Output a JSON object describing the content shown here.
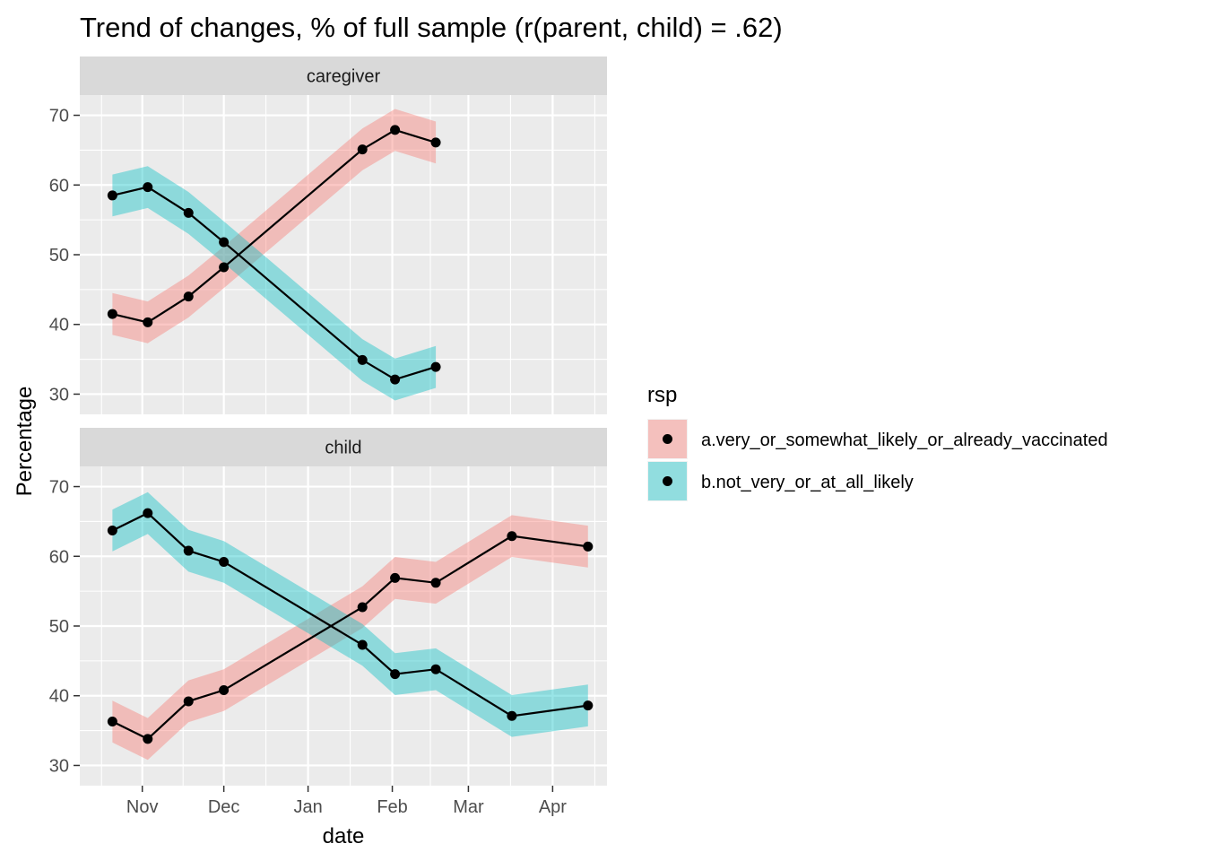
{
  "chart_data": {
    "type": "line",
    "title": "Trend of changes, % of full sample (r(parent, child) = .62)",
    "xlabel": "date",
    "ylabel": "Percentage",
    "x_ticks": [
      "Nov",
      "Dec",
      "Jan",
      "Feb",
      "Mar",
      "Apr"
    ],
    "x_tick_dates": [
      "2020-11-01",
      "2020-12-01",
      "2021-01-01",
      "2021-02-01",
      "2021-03-01",
      "2021-04-01"
    ],
    "xlim": [
      "2020-10-09",
      "2021-04-21"
    ],
    "y_ticks": [
      30,
      40,
      50,
      60,
      70
    ],
    "ylim": [
      27.1,
      72.9
    ],
    "grid": true,
    "legend": {
      "title": "rsp",
      "position": "right",
      "entries": [
        "a.very_or_somewhat_likely_or_already_vaccinated",
        "b.not_very_or_at_all_likely"
      ]
    },
    "colors": {
      "a.very_or_somewhat_likely_or_already_vaccinated": "#F8766D",
      "b.not_very_or_at_all_likely": "#00BFC4",
      "point": "#000000",
      "panel_bg": "#EBEBEB",
      "strip_bg": "#D9D9D9"
    },
    "panels": [
      {
        "label": "caregiver",
        "series": [
          {
            "name": "a.very_or_somewhat_likely_or_already_vaccinated",
            "x": [
              "2020-10-21",
              "2020-11-03",
              "2020-11-18",
              "2020-12-01",
              "2021-01-21",
              "2021-02-02",
              "2021-02-17"
            ],
            "values": [
              41.5,
              40.3,
              44.0,
              48.2,
              65.1,
              67.9,
              66.1
            ],
            "lower": [
              38.5,
              37.3,
              41.0,
              45.2,
              62.1,
              64.9,
              63.1
            ],
            "upper": [
              44.5,
              43.3,
              47.0,
              51.2,
              68.1,
              70.9,
              69.1
            ]
          },
          {
            "name": "b.not_very_or_at_all_likely",
            "x": [
              "2020-10-21",
              "2020-11-03",
              "2020-11-18",
              "2020-12-01",
              "2021-01-21",
              "2021-02-02",
              "2021-02-17"
            ],
            "values": [
              58.5,
              59.7,
              56.0,
              51.8,
              34.9,
              32.1,
              33.9
            ],
            "lower": [
              55.5,
              56.7,
              53.0,
              48.8,
              31.9,
              29.1,
              30.9
            ],
            "upper": [
              61.5,
              62.7,
              59.0,
              54.8,
              37.9,
              35.1,
              36.9
            ]
          }
        ]
      },
      {
        "label": "child",
        "series": [
          {
            "name": "a.very_or_somewhat_likely_or_already_vaccinated",
            "x": [
              "2020-10-21",
              "2020-11-03",
              "2020-11-18",
              "2020-12-01",
              "2021-01-21",
              "2021-02-02",
              "2021-02-17",
              "2021-03-17",
              "2021-04-14"
            ],
            "values": [
              36.3,
              33.8,
              39.2,
              40.8,
              52.7,
              56.9,
              56.2,
              62.9,
              61.4
            ],
            "lower": [
              33.3,
              30.8,
              36.2,
              37.8,
              49.7,
              53.9,
              53.2,
              59.9,
              58.4
            ],
            "upper": [
              39.3,
              36.8,
              42.2,
              43.8,
              55.7,
              59.9,
              59.2,
              65.9,
              64.4
            ]
          },
          {
            "name": "b.not_very_or_at_all_likely",
            "x": [
              "2020-10-21",
              "2020-11-03",
              "2020-11-18",
              "2020-12-01",
              "2021-01-21",
              "2021-02-02",
              "2021-02-17",
              "2021-03-17",
              "2021-04-14"
            ],
            "values": [
              63.7,
              66.2,
              60.8,
              59.2,
              47.3,
              43.1,
              43.8,
              37.1,
              38.6
            ],
            "lower": [
              60.7,
              63.2,
              57.8,
              56.2,
              44.3,
              40.1,
              40.8,
              34.1,
              35.6
            ],
            "upper": [
              66.7,
              69.2,
              63.8,
              62.2,
              50.3,
              46.1,
              46.8,
              40.1,
              41.6
            ]
          }
        ]
      }
    ]
  }
}
